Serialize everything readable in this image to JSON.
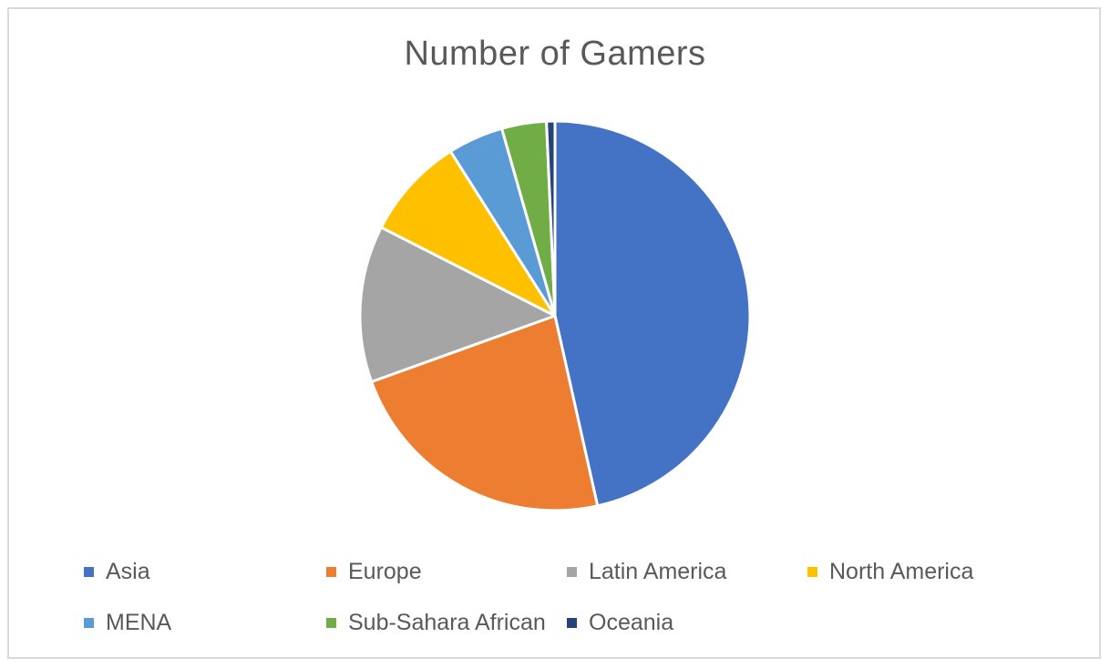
{
  "chart_data": {
    "type": "pie",
    "title": "Number of Gamers",
    "categories": [
      "Asia",
      "Europe",
      "Latin America",
      "North America",
      "MENA",
      "Sub-Sahara African",
      "Oceania"
    ],
    "values": [
      46.5,
      23.0,
      13.0,
      8.5,
      4.6,
      3.7,
      0.7
    ],
    "colors": [
      "#4472c4",
      "#ed7d31",
      "#a5a5a5",
      "#ffc000",
      "#5b9bd5",
      "#70ad47",
      "#264478"
    ],
    "legend_position": "bottom",
    "start_angle": "12 o'clock",
    "direction": "clockwise"
  }
}
